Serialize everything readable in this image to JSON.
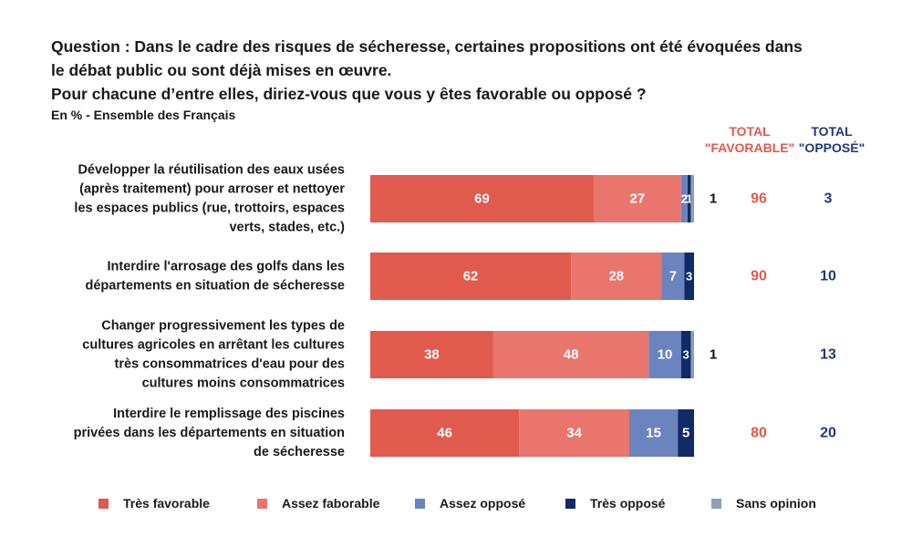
{
  "question": {
    "lines": [
      "Question : Dans le cadre des risques de sécheresse, certaines propositions ont été évoquées dans",
      "le débat public ou sont déjà mises en œuvre.",
      "Pour chacune d’entre elles, diriez-vous que vous y êtes favorable ou opposé ?"
    ],
    "subtitle": "En % - Ensemble des Français"
  },
  "totals_header": {
    "favorable": [
      "TOTAL",
      "\"FAVORABLE\""
    ],
    "oppose": [
      "TOTAL",
      "\"OPPOSÉ\""
    ]
  },
  "colors": {
    "tres_favorable": "#e05a4e",
    "assez_favorable": "#e8766d",
    "assez_oppose": "#6b84bf",
    "tres_oppose": "#0f2a66",
    "sans_opinion": "#8d9fb4",
    "total_favorable_text": "#e05a4e",
    "total_oppose_text": "#1f3a7a"
  },
  "legend": [
    {
      "label": "Très favorable",
      "color": "#e05a4e"
    },
    {
      "label": "Assez faborable",
      "color": "#e8766d"
    },
    {
      "label": "Assez opposé",
      "color": "#6b84bf"
    },
    {
      "label": "Très opposé",
      "color": "#0f2a66"
    },
    {
      "label": "Sans opinion",
      "color": "#8d9fb4"
    }
  ],
  "chart_data": {
    "type": "bar",
    "orientation": "horizontal",
    "stacked": true,
    "xlim": [
      0,
      100
    ],
    "series": [
      {
        "name": "Très favorable",
        "values": [
          69,
          62,
          38,
          46
        ]
      },
      {
        "name": "Assez faborable",
        "values": [
          27,
          28,
          48,
          34
        ]
      },
      {
        "name": "Assez opposé",
        "values": [
          2,
          7,
          10,
          15
        ]
      },
      {
        "name": "Très opposé",
        "values": [
          1,
          3,
          3,
          5
        ]
      },
      {
        "name": "Sans opinion",
        "values": [
          1,
          0,
          1,
          0
        ]
      }
    ],
    "categories": [
      [
        "Développer la réutilisation des eaux usées",
        "(après traitement) pour arroser et nettoyer",
        "les espaces publics (rue, trottoirs, espaces",
        "verts, stades, etc.)"
      ],
      [
        "Interdire l'arrosage des golfs dans les",
        "départements en situation de sécheresse"
      ],
      [
        "Changer progressivement les types de",
        "cultures agricoles en arrêtant les cultures",
        "très consommatrices d'eau pour des",
        "cultures moins consommatrices"
      ],
      [
        "Interdire le remplissage des piscines",
        "privées dans les départements en situation",
        "de sécheresse"
      ]
    ],
    "bar_labels": [
      [
        "69",
        "27",
        "2",
        "1",
        ""
      ],
      [
        "62",
        "28",
        "7",
        "3",
        ""
      ],
      [
        "38",
        "48",
        "10",
        "3",
        ""
      ],
      [
        "46",
        "34",
        "15",
        "5",
        ""
      ]
    ],
    "sans_opinion_labels": [
      "1",
      "",
      "1",
      ""
    ],
    "total_favorable": [
      "96",
      "90",
      "",
      "80"
    ],
    "total_oppose": [
      "3",
      "10",
      "13",
      "20"
    ]
  }
}
